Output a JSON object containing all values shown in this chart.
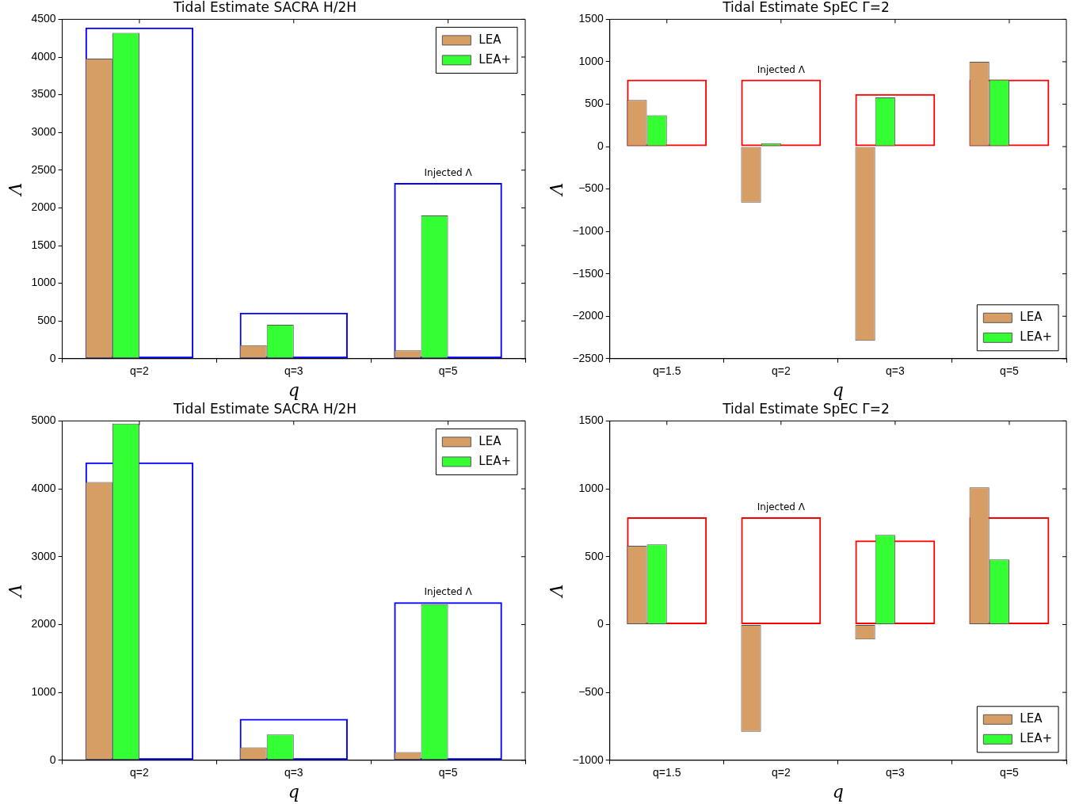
{
  "chart_data": [
    {
      "type": "bar",
      "title": "Tidal Estimate SACRA H/2H",
      "xlabel": "q",
      "ylabel": "Λ",
      "categories": [
        "q=2",
        "q=3",
        "q=5"
      ],
      "series": [
        {
          "name": "LEA",
          "color": "#d69e65",
          "values": [
            3980,
            180,
            110
          ]
        },
        {
          "name": "LEA+",
          "color": "#33ff33",
          "values": [
            4320,
            450,
            1900
          ]
        },
        {
          "type": "bar",
          "color": "#0000ff",
          "values": [
            4390,
            610,
            2330
          ]
        }
      ],
      "ylim": [
        0,
        4500
      ],
      "yticks": [
        0,
        500,
        1000,
        1500,
        2000,
        2500,
        3000,
        3500,
        4000,
        4500
      ],
      "legend": "top right",
      "annotations": [
        {
          "text": "Injected Λ",
          "x": "q=5",
          "y": 2330
        }
      ]
    },
    {
      "type": "bar",
      "title": "Tidal Estimate SpEC Γ=2",
      "xlabel": "q",
      "ylabel": "Λ",
      "categories": [
        "q=1.5",
        "q=2",
        "q=3",
        "q=5"
      ],
      "series": [
        {
          "name": "LEA",
          "color": "#d69e65",
          "values": [
            550,
            -660,
            -2290,
            1000
          ]
        },
        {
          "name": "LEA+",
          "color": "#33ff33",
          "values": [
            370,
            40,
            580,
            790
          ]
        },
        {
          "type": "bar",
          "color": "#ff0000",
          "values": [
            790,
            790,
            620,
            790
          ]
        }
      ],
      "ylim": [
        -2500,
        1500
      ],
      "yticks": [
        -2500,
        -2000,
        -1500,
        -1000,
        -500,
        0,
        500,
        1000,
        1500
      ],
      "legend": "bottom right",
      "annotations": [
        {
          "text": "Injected Λ",
          "x": "q=2",
          "y": 790
        }
      ]
    },
    {
      "type": "bar",
      "title": "Tidal Estimate SACRA H/2H",
      "xlabel": "q",
      "ylabel": "Λ",
      "categories": [
        "q=2",
        "q=3",
        "q=5"
      ],
      "series": [
        {
          "name": "LEA",
          "color": "#d69e65",
          "values": [
            4100,
            190,
            120
          ]
        },
        {
          "name": "LEA+",
          "color": "#33ff33",
          "values": [
            4960,
            380,
            2300
          ]
        },
        {
          "type": "bar",
          "color": "#0000ff",
          "values": [
            4390,
            610,
            2330
          ]
        }
      ],
      "ylim": [
        0,
        5000
      ],
      "yticks": [
        0,
        1000,
        2000,
        3000,
        4000,
        5000
      ],
      "legend": "top right",
      "annotations": [
        {
          "text": "Injected Λ",
          "x": "q=5",
          "y": 2330
        }
      ]
    },
    {
      "type": "bar",
      "title": "Tidal Estimate SpEC Γ=2",
      "xlabel": "q",
      "ylabel": "Λ",
      "categories": [
        "q=1.5",
        "q=2",
        "q=3",
        "q=5"
      ],
      "series": [
        {
          "name": "LEA",
          "color": "#d69e65",
          "values": [
            580,
            -790,
            -110,
            1010
          ]
        },
        {
          "name": "LEA+",
          "color": "#33ff33",
          "values": [
            590,
            0,
            660,
            480
          ]
        },
        {
          "type": "bar",
          "color": "#ff0000",
          "values": [
            790,
            790,
            620,
            790
          ]
        }
      ],
      "ylim": [
        -1000,
        1500
      ],
      "yticks": [
        -1000,
        -500,
        0,
        500,
        1000,
        1500
      ],
      "legend": "bottom right",
      "annotations": [
        {
          "text": "Injected Λ",
          "x": "q=2",
          "y": 790
        }
      ]
    }
  ]
}
